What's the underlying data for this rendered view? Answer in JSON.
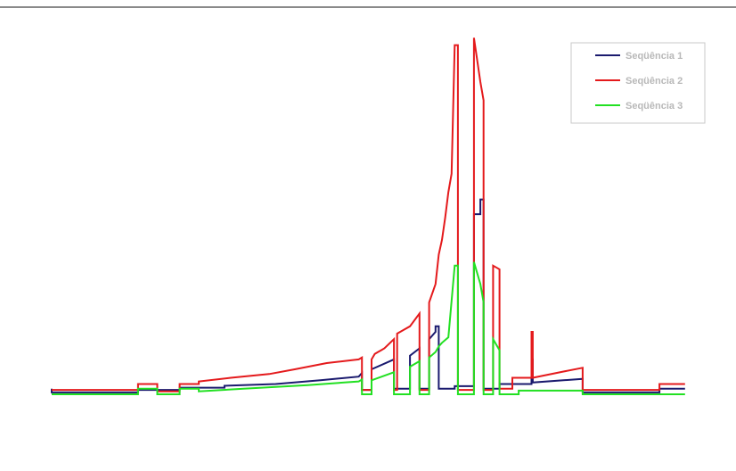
{
  "chart_data": {
    "type": "line",
    "title": "",
    "xlabel": "",
    "ylabel": "",
    "x_range": [
      0,
      100
    ],
    "ylim": [
      0,
      100
    ],
    "grid": false,
    "axes_visible": false,
    "legend_position": "top-right",
    "series": [
      {
        "name": "Seqüência 1",
        "color": "#1a1a6e",
        "points": [
          [
            0,
            1.5
          ],
          [
            0,
            0.5
          ],
          [
            13.5,
            0.5
          ],
          [
            13.5,
            1.2
          ],
          [
            20,
            1.2
          ],
          [
            20,
            1.8
          ],
          [
            27,
            1.8
          ],
          [
            27,
            2.3
          ],
          [
            35,
            2.8
          ],
          [
            42,
            3.8
          ],
          [
            48,
            4.8
          ],
          [
            48.5,
            5.8
          ],
          [
            48.5,
            1.2
          ],
          [
            50,
            1.2
          ],
          [
            50,
            6.8
          ],
          [
            53.5,
            9.5
          ],
          [
            53.5,
            1.5
          ],
          [
            56,
            1.5
          ],
          [
            56,
            10.5
          ],
          [
            57.5,
            12.5
          ],
          [
            57.5,
            1.5
          ],
          [
            59,
            1.5
          ],
          [
            59,
            15
          ],
          [
            60,
            17
          ],
          [
            60,
            18.5
          ],
          [
            60.5,
            18.5
          ],
          [
            60.5,
            1.5
          ],
          [
            63,
            1.5
          ],
          [
            63,
            2.2
          ],
          [
            66,
            2.2
          ],
          [
            66,
            49
          ],
          [
            67,
            49
          ],
          [
            67,
            53
          ],
          [
            67.5,
            53
          ],
          [
            67.5,
            1.5
          ],
          [
            70,
            1.5
          ],
          [
            70,
            2.8
          ],
          [
            75,
            2.8
          ],
          [
            75,
            9.5
          ],
          [
            75.2,
            9.5
          ],
          [
            75.2,
            3.2
          ],
          [
            80,
            3.8
          ],
          [
            83,
            4.2
          ],
          [
            83,
            0.5
          ],
          [
            95,
            0.5
          ],
          [
            95,
            1.5
          ],
          [
            99,
            1.5
          ]
        ]
      },
      {
        "name": "Seqüência 2",
        "color": "#e41a1c",
        "points": [
          [
            0,
            1.2
          ],
          [
            13.5,
            1.2
          ],
          [
            13.5,
            2.8
          ],
          [
            16.5,
            2.8
          ],
          [
            16.5,
            0.8
          ],
          [
            20,
            0.8
          ],
          [
            20,
            2.8
          ],
          [
            23,
            2.8
          ],
          [
            23,
            3.5
          ],
          [
            28,
            4.5
          ],
          [
            34,
            5.5
          ],
          [
            38,
            6.8
          ],
          [
            43,
            8.5
          ],
          [
            48,
            9.5
          ],
          [
            48.5,
            10
          ],
          [
            48.5,
            1.2
          ],
          [
            50,
            1.2
          ],
          [
            50,
            9.5
          ],
          [
            50.5,
            11
          ],
          [
            51,
            11.5
          ],
          [
            51.5,
            12
          ],
          [
            52,
            12.5
          ],
          [
            53.5,
            15
          ],
          [
            53.5,
            1.2
          ],
          [
            54,
            1.2
          ],
          [
            54,
            16.5
          ],
          [
            55,
            17.5
          ],
          [
            56,
            18.5
          ],
          [
            57.5,
            22
          ],
          [
            57.5,
            1.2
          ],
          [
            59,
            1.2
          ],
          [
            59,
            25
          ],
          [
            60,
            30
          ],
          [
            60.5,
            38
          ],
          [
            61,
            42
          ],
          [
            61.5,
            48
          ],
          [
            62,
            55
          ],
          [
            62.5,
            60
          ],
          [
            63,
            95
          ],
          [
            63.5,
            95
          ],
          [
            63.5,
            1.2
          ],
          [
            66,
            1.2
          ],
          [
            66,
            97
          ],
          [
            67,
            85
          ],
          [
            67.5,
            80
          ],
          [
            67.5,
            1.2
          ],
          [
            69,
            1.2
          ],
          [
            69,
            35
          ],
          [
            70,
            34
          ],
          [
            70,
            1.5
          ],
          [
            72,
            1.5
          ],
          [
            72,
            4.5
          ],
          [
            75,
            4.5
          ],
          [
            75,
            17
          ],
          [
            75.2,
            17
          ],
          [
            75.2,
            4.5
          ],
          [
            80,
            6.2
          ],
          [
            83,
            7.2
          ],
          [
            83,
            1.2
          ],
          [
            95,
            1.2
          ],
          [
            95,
            2.8
          ],
          [
            99,
            2.8
          ]
        ]
      },
      {
        "name": "Seqüência 3",
        "color": "#22e022",
        "points": [
          [
            0,
            0
          ],
          [
            13.5,
            0
          ],
          [
            13.5,
            1.5
          ],
          [
            16.5,
            1.5
          ],
          [
            16.5,
            0
          ],
          [
            20,
            0
          ],
          [
            20,
            1.5
          ],
          [
            23,
            1.5
          ],
          [
            23,
            0.8
          ],
          [
            30,
            1.5
          ],
          [
            40,
            2.5
          ],
          [
            48,
            3.5
          ],
          [
            48.5,
            4
          ],
          [
            48.5,
            0
          ],
          [
            50,
            0
          ],
          [
            50,
            3.8
          ],
          [
            53.5,
            6
          ],
          [
            53.5,
            0
          ],
          [
            56,
            0
          ],
          [
            56,
            7.5
          ],
          [
            57.5,
            9
          ],
          [
            57.5,
            0
          ],
          [
            59,
            0
          ],
          [
            59,
            10
          ],
          [
            60,
            11.5
          ],
          [
            60.5,
            13
          ],
          [
            61,
            14
          ],
          [
            62,
            15.5
          ],
          [
            63,
            35
          ],
          [
            63.5,
            35
          ],
          [
            63.5,
            0
          ],
          [
            66,
            0
          ],
          [
            66,
            36
          ],
          [
            67,
            30
          ],
          [
            67.5,
            25
          ],
          [
            67.5,
            0
          ],
          [
            69,
            0
          ],
          [
            69,
            15
          ],
          [
            70,
            12
          ],
          [
            70,
            0
          ],
          [
            73,
            0
          ],
          [
            73,
            1
          ],
          [
            83,
            1
          ],
          [
            83,
            0
          ],
          [
            99,
            0
          ]
        ]
      }
    ]
  }
}
